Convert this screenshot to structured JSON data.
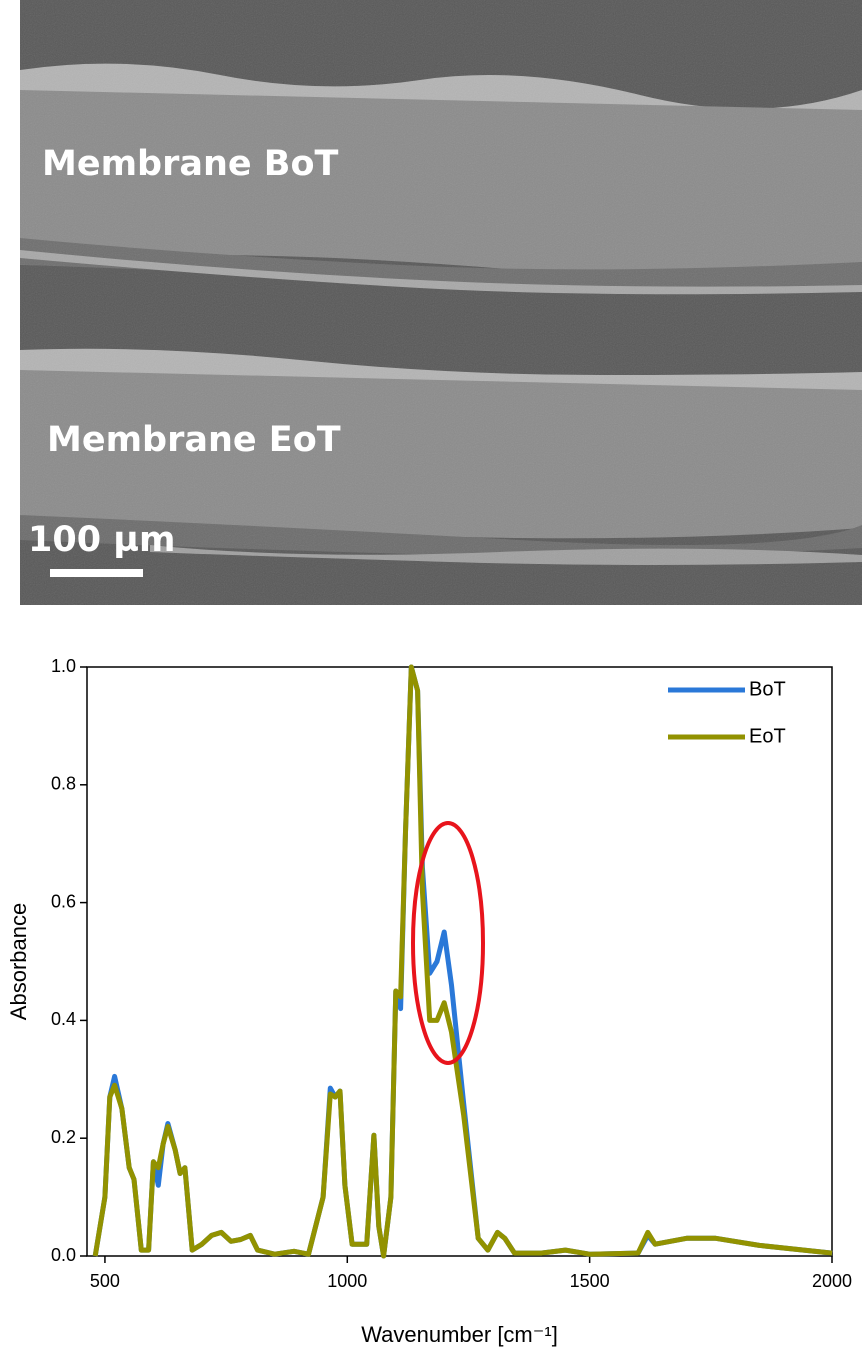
{
  "image": {
    "labels": [
      "Membrane BoT",
      "Membrane EoT"
    ],
    "scale_bar": "100 µm"
  },
  "chart_data": {
    "type": "line",
    "xlabel": "Wavenumber [cm⁻¹]",
    "ylabel": "Absorbance",
    "x": [
      480,
      500,
      510,
      520,
      535,
      550,
      560,
      575,
      590,
      600,
      610,
      620,
      630,
      645,
      655,
      665,
      680,
      700,
      720,
      740,
      760,
      780,
      800,
      815,
      850,
      890,
      920,
      950,
      965,
      975,
      985,
      995,
      1010,
      1040,
      1055,
      1065,
      1075,
      1090,
      1100,
      1110,
      1120,
      1132,
      1145,
      1155,
      1170,
      1185,
      1200,
      1215,
      1240,
      1270,
      1290,
      1310,
      1325,
      1345,
      1400,
      1450,
      1500,
      1600,
      1620,
      1635,
      1700,
      1760,
      1850,
      2000
    ],
    "series": [
      {
        "name": "BoT",
        "color": "#2a78d8",
        "values": [
          0,
          0.1,
          0.27,
          0.305,
          0.25,
          0.15,
          0.13,
          0.01,
          0.01,
          0.16,
          0.12,
          0.19,
          0.225,
          0.18,
          0.14,
          0.15,
          0.01,
          0.02,
          0.035,
          0.04,
          0.025,
          0.028,
          0.035,
          0.01,
          0.003,
          0.008,
          0.003,
          0.1,
          0.285,
          0.27,
          0.28,
          0.12,
          0.02,
          0.02,
          0.205,
          0.05,
          0,
          0.1,
          0.45,
          0.42,
          0.72,
          1.0,
          0.96,
          0.66,
          0.48,
          0.5,
          0.55,
          0.46,
          0.26,
          0.03,
          0.01,
          0.04,
          0.03,
          0.005,
          0.005,
          0.01,
          0.003,
          0.005,
          0.035,
          0.02,
          0.03,
          0.03,
          0.018,
          0.005
        ]
      },
      {
        "name": "EoT",
        "color": "#929200",
        "values": [
          0,
          0.1,
          0.27,
          0.29,
          0.25,
          0.15,
          0.13,
          0.01,
          0.01,
          0.16,
          0.15,
          0.19,
          0.22,
          0.18,
          0.14,
          0.15,
          0.01,
          0.02,
          0.035,
          0.04,
          0.025,
          0.028,
          0.035,
          0.01,
          0.003,
          0.008,
          0.003,
          0.1,
          0.275,
          0.27,
          0.28,
          0.12,
          0.02,
          0.02,
          0.205,
          0.05,
          0,
          0.1,
          0.45,
          0.44,
          0.72,
          1.0,
          0.96,
          0.62,
          0.4,
          0.4,
          0.43,
          0.38,
          0.24,
          0.03,
          0.01,
          0.04,
          0.03,
          0.005,
          0.005,
          0.01,
          0.003,
          0.005,
          0.04,
          0.02,
          0.03,
          0.03,
          0.018,
          0.005
        ]
      }
    ],
    "xlim": [
      463,
      2000
    ],
    "xticks": [
      500,
      1000,
      1500,
      2000
    ],
    "ylim": [
      0,
      1
    ],
    "yticks": [
      {
        "value": 0,
        "label": "0.0"
      },
      0.2,
      0.4,
      0.6,
      0.8,
      {
        "value": 1,
        "label": "1.0"
      }
    ],
    "legend": "upper right"
  }
}
